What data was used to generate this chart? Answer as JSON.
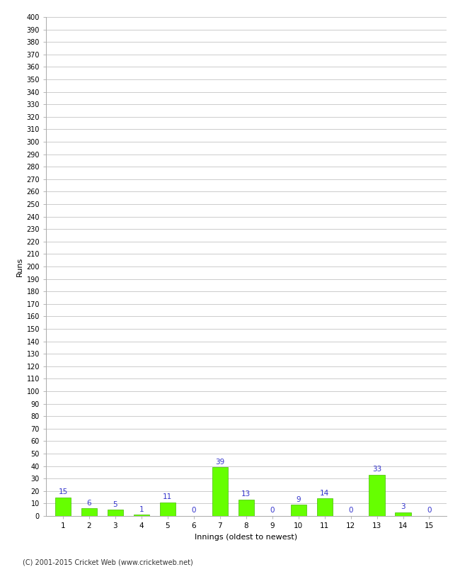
{
  "xlabel": "Innings (oldest to newest)",
  "ylabel": "Runs",
  "categories": [
    1,
    2,
    3,
    4,
    5,
    6,
    7,
    8,
    9,
    10,
    11,
    12,
    13,
    14,
    15
  ],
  "values": [
    15,
    6,
    5,
    1,
    11,
    0,
    39,
    13,
    0,
    9,
    14,
    0,
    33,
    3,
    0
  ],
  "bar_color": "#66ff00",
  "bar_edge_color": "#44bb00",
  "label_color": "#3333cc",
  "ylim": [
    0,
    400
  ],
  "background_color": "#ffffff",
  "grid_color": "#cccccc",
  "footer": "(C) 2001-2015 Cricket Web (www.cricketweb.net)"
}
